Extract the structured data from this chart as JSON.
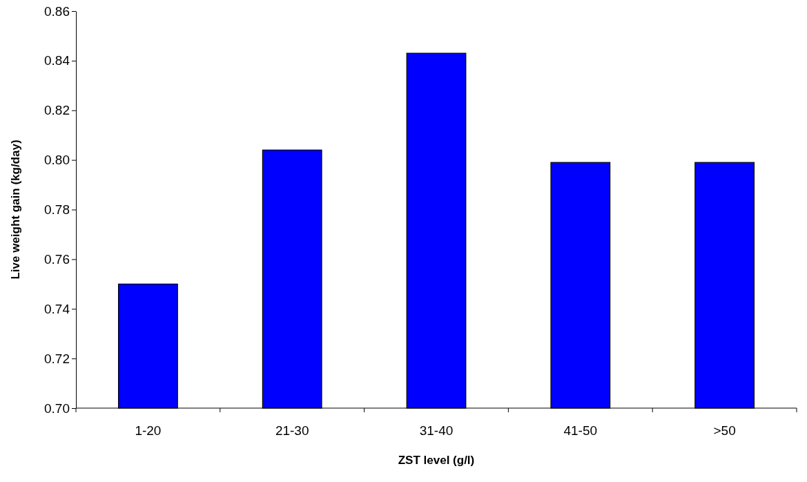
{
  "chart_data": {
    "type": "bar",
    "xlabel": "ZST level (g/l)",
    "ylabel": "Live weight gain (kg/day)",
    "categories": [
      "1-20",
      "21-30",
      "31-40",
      "41-50",
      ">50"
    ],
    "values": [
      0.75,
      0.804,
      0.843,
      0.799,
      0.799
    ],
    "color": "#0000ff",
    "ylim": [
      0.7,
      0.86
    ],
    "yticks": [
      {
        "value": 0.7,
        "label": "0.70"
      },
      {
        "value": 0.72,
        "label": "0.72"
      },
      {
        "value": 0.74,
        "label": "0.74"
      },
      {
        "value": 0.76,
        "label": "0.76"
      },
      {
        "value": 0.78,
        "label": "0.78"
      },
      {
        "value": 0.8,
        "label": "0.80"
      },
      {
        "value": 0.82,
        "label": "0.82"
      },
      {
        "value": 0.84,
        "label": "0.84"
      },
      {
        "value": 0.86,
        "label": "0.86"
      }
    ],
    "grid": false
  }
}
